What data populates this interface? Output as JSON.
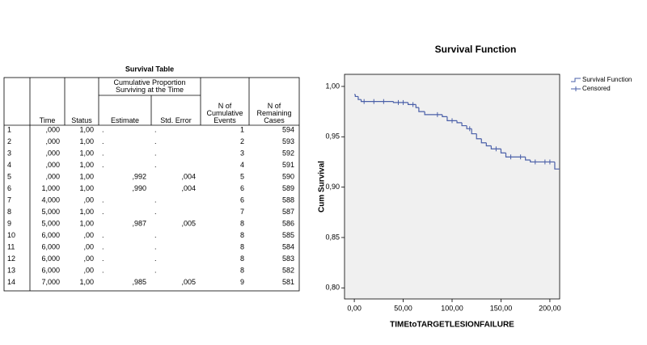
{
  "table": {
    "title": "Survival Table",
    "group_header": "Cumulative Proportion Surviving at the Time",
    "columns": [
      "Time",
      "Status",
      "Estimate",
      "Std. Error",
      "N of Cumulative Events",
      "N of Remaining Cases"
    ],
    "rows": [
      [
        "1",
        ",000",
        "1,00",
        ".",
        ".",
        "1",
        "594"
      ],
      [
        "2",
        ",000",
        "1,00",
        ".",
        ".",
        "2",
        "593"
      ],
      [
        "3",
        ",000",
        "1,00",
        ".",
        ".",
        "3",
        "592"
      ],
      [
        "4",
        ",000",
        "1,00",
        ".",
        ".",
        "4",
        "591"
      ],
      [
        "5",
        ",000",
        "1,00",
        ",992",
        ",004",
        "5",
        "590"
      ],
      [
        "6",
        "1,000",
        "1,00",
        ",990",
        ",004",
        "6",
        "589"
      ],
      [
        "7",
        "4,000",
        ",00",
        ".",
        ".",
        "6",
        "588"
      ],
      [
        "8",
        "5,000",
        "1,00",
        ".",
        ".",
        "7",
        "587"
      ],
      [
        "9",
        "5,000",
        "1,00",
        ",987",
        ",005",
        "8",
        "586"
      ],
      [
        "10",
        "6,000",
        ",00",
        ".",
        ".",
        "8",
        "585"
      ],
      [
        "11",
        "6,000",
        ",00",
        ".",
        ".",
        "8",
        "584"
      ],
      [
        "12",
        "6,000",
        ",00",
        ".",
        ".",
        "8",
        "583"
      ],
      [
        "13",
        "6,000",
        ",00",
        ".",
        ".",
        "8",
        "582"
      ],
      [
        "14",
        "7,000",
        "1,00",
        ",985",
        ",005",
        "9",
        "581"
      ]
    ]
  },
  "chart_data": {
    "type": "step",
    "title": "Survival Function",
    "x_label": "TIMEtoTARGETLESIONFAILURE",
    "y_label": "Cum Survival",
    "x": [
      0,
      1,
      4,
      7,
      40,
      55,
      63,
      66,
      72,
      90,
      95,
      105,
      110,
      115,
      120,
      125,
      130,
      135,
      140,
      150,
      155,
      175,
      180,
      205
    ],
    "series": [
      {
        "name": "Survival Function",
        "color": "#4a5fa8",
        "values": [
          0.992,
          0.99,
          0.987,
          0.985,
          0.984,
          0.982,
          0.979,
          0.975,
          0.972,
          0.97,
          0.966,
          0.964,
          0.961,
          0.958,
          0.953,
          0.948,
          0.944,
          0.941,
          0.938,
          0.934,
          0.93,
          0.927,
          0.925,
          0.918
        ]
      },
      {
        "name": "Censored",
        "color": "#4a5fa8",
        "x": [
          10,
          20,
          30,
          45,
          50,
          60,
          85,
          100,
          118,
          145,
          160,
          170,
          185,
          195,
          200
        ],
        "values": [
          0.985,
          0.985,
          0.985,
          0.984,
          0.984,
          0.982,
          0.972,
          0.966,
          0.958,
          0.938,
          0.93,
          0.93,
          0.925,
          0.925,
          0.925
        ]
      }
    ],
    "xlim": [
      -10,
      210
    ],
    "xticks": [
      {
        "value": 0,
        "label": "0,00"
      },
      {
        "value": 50,
        "label": "50,00"
      },
      {
        "value": 100,
        "label": "100,00"
      },
      {
        "value": 150,
        "label": "150,00"
      },
      {
        "value": 200,
        "label": "200,00"
      }
    ],
    "ylim": [
      0.789,
      1.012
    ],
    "yticks": [
      {
        "value": 0.8,
        "label": "0,80"
      },
      {
        "value": 0.85,
        "label": "0,85"
      },
      {
        "value": 0.9,
        "label": "0,90"
      },
      {
        "value": 0.95,
        "label": "0,95"
      },
      {
        "value": 1,
        "label": "1,00"
      }
    ]
  }
}
